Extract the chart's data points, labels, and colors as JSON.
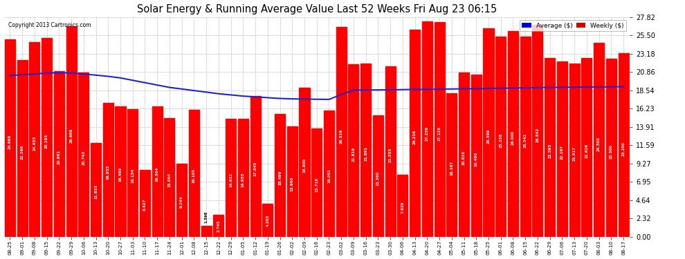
{
  "title": "Solar Energy & Running Average Value Last 52 Weeks Fri Aug 23 06:15",
  "copyright": "Copyright 2013 Cartronics.com",
  "bar_color": "#ff0000",
  "avg_line_color": "#2222cc",
  "background_color": "#ffffff",
  "grid_color": "#bbbbbb",
  "ylim_max": 27.82,
  "yticks": [
    0.0,
    2.32,
    4.64,
    6.95,
    9.27,
    11.59,
    13.91,
    16.23,
    18.54,
    20.86,
    23.18,
    25.5,
    27.82
  ],
  "legend_avg_color": "#0000cc",
  "legend_weekly_color": "#cc0000",
  "categories": [
    "08-25",
    "09-01",
    "09-08",
    "09-15",
    "09-22",
    "09-29",
    "10-06",
    "10-13",
    "10-20",
    "10-27",
    "11-03",
    "11-10",
    "11-17",
    "11-24",
    "12-01",
    "12-08",
    "12-15",
    "12-22",
    "12-29",
    "01-05",
    "01-12",
    "01-19",
    "01-26",
    "02-02",
    "02-09",
    "02-16",
    "02-23",
    "03-02",
    "03-09",
    "03-16",
    "03-23",
    "03-30",
    "04-06",
    "04-13",
    "04-20",
    "04-27",
    "05-04",
    "05-11",
    "05-18",
    "05-25",
    "06-01",
    "06-08",
    "06-15",
    "06-22",
    "06-29",
    "07-06",
    "07-13",
    "07-20",
    "08-03",
    "08-10",
    "08-17"
  ],
  "weekly_values": [
    24.998,
    22.368,
    24.635,
    25.195,
    20.981,
    26.666,
    20.743,
    11.833,
    16.955,
    16.469,
    16.154,
    8.427,
    16.504,
    15.004,
    9.244,
    16.105,
    1.398,
    2.745,
    14.912,
    14.955,
    17.845,
    4.203,
    15.499,
    13.96,
    18.9,
    13.716,
    16.001,
    26.519,
    21.819,
    21.891,
    15.36,
    21.555,
    7.829,
    26.216,
    27.256,
    27.126,
    18.167,
    20.826,
    20.48,
    26.399,
    25.338,
    26.0,
    25.342,
    26.842,
    22.595,
    22.197,
    21.917,
    22.626,
    24.5,
    22.5,
    23.2
  ],
  "avg_values_y": [
    20.4,
    20.5,
    20.6,
    20.72,
    20.75,
    20.72,
    20.6,
    20.45,
    20.3,
    20.1,
    19.8,
    19.5,
    19.2,
    18.9,
    18.7,
    18.5,
    18.3,
    18.1,
    17.95,
    17.8,
    17.7,
    17.6,
    17.5,
    17.45,
    17.42,
    17.4,
    17.38,
    18.0,
    18.55,
    18.58,
    18.58,
    18.6,
    18.62,
    18.65,
    18.65,
    18.68,
    18.7,
    18.72,
    18.74,
    18.76,
    18.8,
    18.82,
    18.85,
    18.88,
    18.9,
    18.92,
    18.94,
    18.95,
    18.95,
    18.97,
    19.0
  ]
}
